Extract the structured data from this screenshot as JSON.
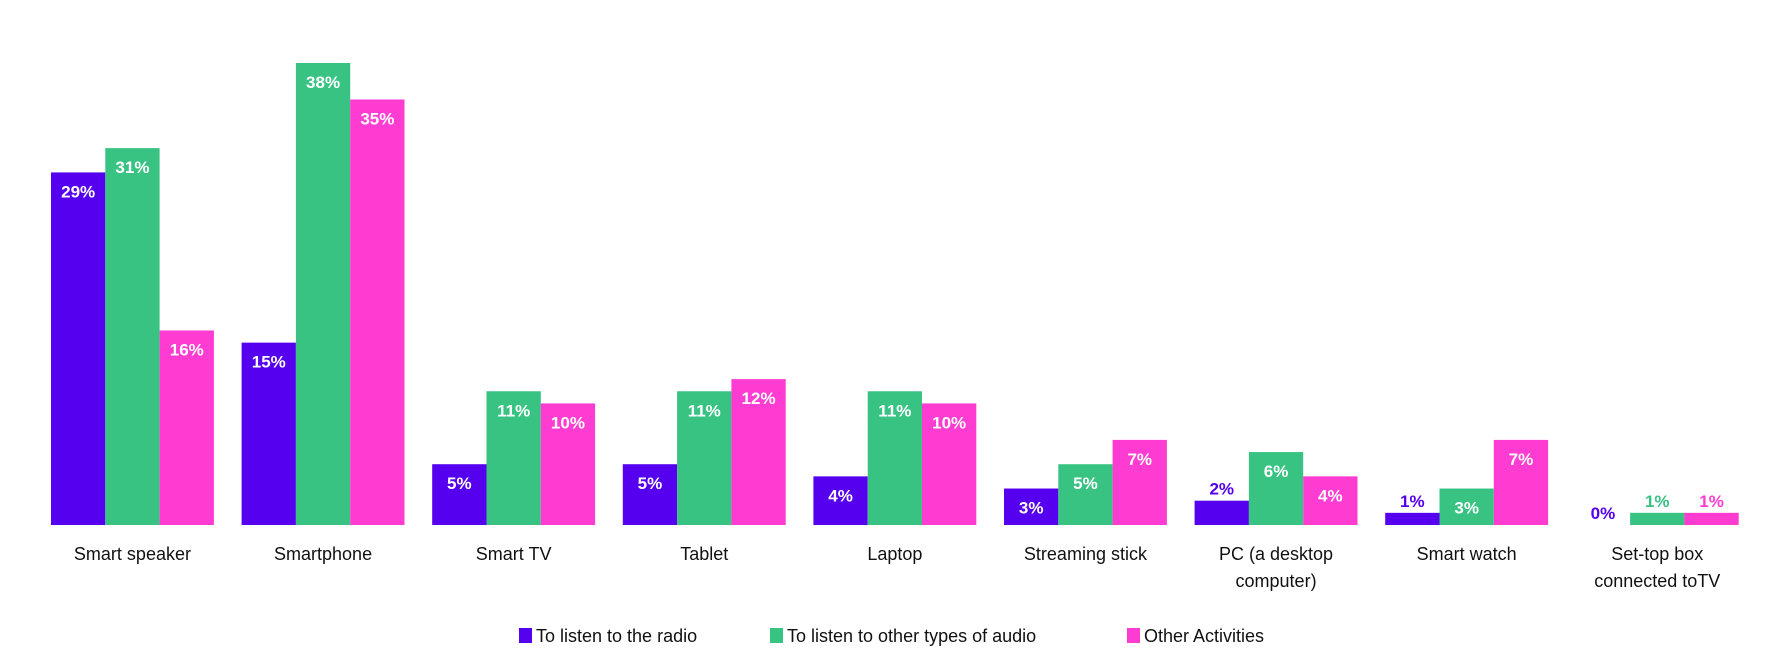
{
  "chart_data": {
    "type": "bar",
    "title": "",
    "xlabel": "",
    "ylabel": "",
    "ylim": [
      0,
      38
    ],
    "grid": false,
    "legend_position": "bottom",
    "unit": "%",
    "categories": [
      [
        "Smart speaker"
      ],
      [
        "Smartphone"
      ],
      [
        "Smart TV"
      ],
      [
        "Tablet"
      ],
      [
        "Laptop"
      ],
      [
        "Streaming stick"
      ],
      [
        "PC (a desktop",
        "computer)"
      ],
      [
        "Smart watch"
      ],
      [
        "Set-top box",
        "connected toTV"
      ]
    ],
    "series": [
      {
        "name": "To listen to the radio",
        "color": "#5500EE",
        "values": [
          29,
          15,
          5,
          5,
          4,
          3,
          2,
          1,
          0
        ]
      },
      {
        "name": "To listen to other types of audio",
        "color": "#38C383",
        "values": [
          31,
          38,
          11,
          11,
          11,
          5,
          6,
          3,
          1
        ]
      },
      {
        "name": "Other Activities",
        "color": "#FF3CD2",
        "values": [
          16,
          35,
          10,
          12,
          10,
          7,
          4,
          7,
          1
        ]
      }
    ]
  }
}
